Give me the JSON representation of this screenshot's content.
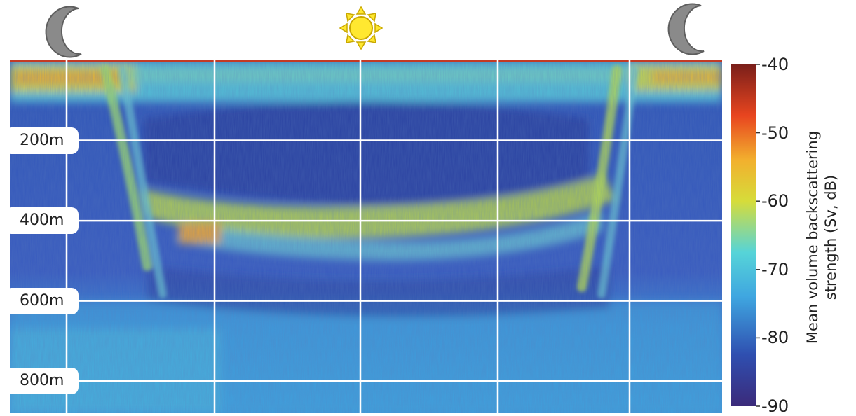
{
  "chart_data": {
    "type": "heatmap",
    "title": "",
    "xlabel": "",
    "ylabel": "",
    "y_axis": {
      "tick_labels": [
        "200m",
        "400m",
        "600m",
        "800m"
      ],
      "ticks": [
        200,
        400,
        600,
        800
      ],
      "range": [
        0,
        880
      ],
      "inverted": true
    },
    "time_markers": [
      {
        "icon": "moon-icon",
        "phase": "night",
        "position": "left"
      },
      {
        "icon": "sun-icon",
        "phase": "day",
        "position": "center"
      },
      {
        "icon": "moon-icon",
        "phase": "night",
        "position": "right"
      }
    ],
    "colorbar": {
      "label_line1": "Mean volume backscattering",
      "label_line2": "strength (Sv, dB)",
      "min": -90,
      "max": -40,
      "ticks": [
        -40,
        -50,
        -60,
        -70,
        -80,
        -90
      ],
      "tick_labels": [
        "-40",
        "-50",
        "-60",
        "-70",
        "-80",
        "-90"
      ],
      "colormap": [
        "#3b2a7a",
        "#2f4fb0",
        "#3fa6e0",
        "#56d4d8",
        "#d6dc3a",
        "#f2b02e",
        "#e8451f",
        "#7a1f1a"
      ]
    },
    "layers": [
      {
        "name": "surface layer",
        "depth_m": [
          0,
          80
        ],
        "sv_db": -60,
        "note": "strongest at night"
      },
      {
        "name": "deep scattering layer (daytime)",
        "depth_m": [
          340,
          420
        ],
        "sv_db": -62
      },
      {
        "name": "low-scatter band (daytime)",
        "depth_m": [
          140,
          320
        ],
        "sv_db": -82
      },
      {
        "name": "migration paths",
        "dusk_and_dawn": true,
        "depth_range_m": [
          0,
          600
        ]
      },
      {
        "name": "deep background",
        "depth_m": [
          600,
          880
        ],
        "sv_db": -76
      }
    ],
    "grid": true,
    "grid_color": "#ffffff"
  },
  "colors": {
    "moon": "#8a8a8a",
    "sun_fill": "#ffe830",
    "sun_stroke": "#c9a800",
    "grid": "#ffffff"
  }
}
